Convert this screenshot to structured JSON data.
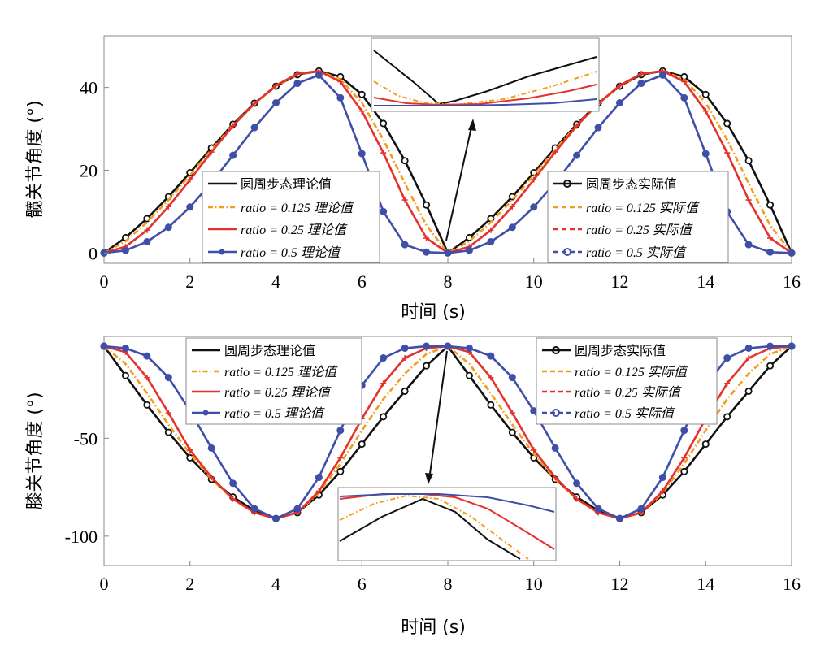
{
  "chart_data": [
    {
      "type": "line",
      "xlabel": "时间 (s)",
      "ylabel": "髋关节角度 (°)",
      "xlim": [
        0,
        16
      ],
      "ylim": [
        -2.5,
        52.5
      ],
      "xticks": [
        0,
        2,
        4,
        6,
        8,
        10,
        12,
        14,
        16
      ],
      "yticks": [
        0,
        20,
        40
      ],
      "grid": false,
      "legend_left": [
        "圆周步态理论值",
        "ratio = 0.125 理论值",
        "ratio = 0.25 理论值",
        "ratio = 0.5 理论值"
      ],
      "legend_right": [
        "圆周步态实际值",
        "ratio = 0.125 实际值",
        "ratio = 0.25 实际值",
        "ratio = 0.5 实际值"
      ],
      "x": [
        0,
        0.5,
        1,
        1.5,
        2,
        2.5,
        3,
        3.5,
        4,
        4.5,
        5,
        5.5,
        6,
        6.5,
        7,
        7.5,
        8,
        8.5,
        9,
        9.5,
        10,
        10.5,
        11,
        11.5,
        12,
        12.5,
        13,
        13.5,
        14,
        14.5,
        15,
        15.5,
        16
      ],
      "series": [
        {
          "name": "圆周步态理论值",
          "color": "#111111",
          "style": "solid",
          "values": [
            0,
            3.7,
            8.3,
            13.6,
            19.4,
            25.4,
            31.1,
            36.2,
            40.3,
            43.1,
            44.0,
            42.6,
            38.3,
            31.3,
            22.3,
            11.6,
            0,
            3.7,
            8.3,
            13.6,
            19.4,
            25.4,
            31.1,
            36.2,
            40.3,
            43.1,
            44.0,
            42.6,
            38.3,
            31.3,
            22.3,
            11.6,
            0
          ]
        },
        {
          "name": "ratio = 0.125 理论值",
          "color": "#F39C1A",
          "style": "dashdot",
          "values": [
            0,
            2.8,
            7.4,
            12.8,
            18.8,
            25.0,
            30.9,
            36.1,
            40.3,
            43.2,
            44.0,
            42.0,
            36.3,
            27.4,
            16.8,
            6.7,
            0,
            2.8,
            7.4,
            12.8,
            18.8,
            25.0,
            30.9,
            36.1,
            40.3,
            43.2,
            44.0,
            42.0,
            36.3,
            27.4,
            16.8,
            6.7,
            0
          ]
        },
        {
          "name": "ratio = 0.25 理论值",
          "color": "#E5322D",
          "style": "solid",
          "values": [
            0,
            1.5,
            5.5,
            11.2,
            17.7,
            24.4,
            30.7,
            36.1,
            40.5,
            43.3,
            44.0,
            41.4,
            34.3,
            24.2,
            12.8,
            3.6,
            0,
            1.5,
            5.5,
            11.2,
            17.7,
            24.4,
            30.7,
            36.1,
            40.5,
            43.3,
            44.0,
            41.4,
            34.3,
            24.2,
            12.8,
            3.6,
            0
          ]
        },
        {
          "name": "ratio = 0.5 理论值",
          "color": "#3F4FA8",
          "style": "solid",
          "values": [
            0,
            0.6,
            2.7,
            6.2,
            11.1,
            17.0,
            23.6,
            30.3,
            36.3,
            41.0,
            43.0,
            37.5,
            24.0,
            10.0,
            2.0,
            0.2,
            0,
            0.6,
            2.7,
            6.2,
            11.1,
            17.0,
            23.6,
            30.3,
            36.3,
            41.0,
            43.0,
            37.5,
            24.0,
            10.0,
            2.0,
            0.2,
            0
          ]
        }
      ]
    },
    {
      "type": "line",
      "xlabel": "时间 (s)",
      "ylabel": "膝关节角度 (°)",
      "xlim": [
        0,
        16
      ],
      "ylim": [
        -115,
        2
      ],
      "xticks": [
        0,
        2,
        4,
        6,
        8,
        10,
        12,
        14,
        16
      ],
      "yticks": [
        -50,
        -100
      ],
      "grid": false,
      "legend_left": [
        "圆周步态理论值",
        "ratio = 0.125 理论值",
        "ratio = 0.25 理论值",
        "ratio = 0.5 理论值"
      ],
      "legend_right": [
        "圆周步态实际值",
        "ratio = 0.125 实际值",
        "ratio = 0.25 实际值",
        "ratio = 0.5 实际值"
      ],
      "x": [
        0,
        0.5,
        1,
        1.5,
        2,
        2.5,
        3,
        3.5,
        4,
        4.5,
        5,
        5.5,
        6,
        6.5,
        7,
        7.5,
        8,
        8.5,
        9,
        9.5,
        10,
        10.5,
        11,
        11.5,
        12,
        12.5,
        13,
        13.5,
        14,
        14.5,
        15,
        15.5,
        16
      ],
      "series": [
        {
          "name": "圆周步态理论值",
          "color": "#111111",
          "style": "solid",
          "values": [
            -3,
            -18,
            -33,
            -47,
            -60,
            -71,
            -80,
            -87,
            -91,
            -88,
            -79,
            -67,
            -53,
            -39,
            -26,
            -13,
            -3,
            -18,
            -33,
            -47,
            -60,
            -71,
            -80,
            -87,
            -91,
            -88,
            -79,
            -67,
            -53,
            -39,
            -26,
            -13,
            -3
          ]
        },
        {
          "name": "ratio = 0.125 理论值",
          "color": "#F39C1A",
          "style": "dashdot",
          "values": [
            -3,
            -12,
            -27,
            -43,
            -58,
            -71,
            -81,
            -88,
            -91,
            -88,
            -78,
            -63,
            -46,
            -30,
            -17,
            -7,
            -3,
            -12,
            -27,
            -43,
            -58,
            -71,
            -81,
            -88,
            -91,
            -88,
            -78,
            -63,
            -46,
            -30,
            -17,
            -7,
            -3
          ]
        },
        {
          "name": "ratio = 0.25 理论值",
          "color": "#E5322D",
          "style": "solid",
          "values": [
            -3,
            -6,
            -19,
            -37,
            -56,
            -70,
            -81,
            -88,
            -91,
            -88,
            -77,
            -60,
            -40,
            -22,
            -9,
            -4,
            -3,
            -6,
            -19,
            -37,
            -56,
            -70,
            -81,
            -88,
            -91,
            -88,
            -77,
            -60,
            -40,
            -22,
            -9,
            -4,
            -3
          ]
        },
        {
          "name": "ratio = 0.5 理论值",
          "color": "#3F4FA8",
          "style": "solid",
          "values": [
            -3,
            -4,
            -8,
            -19,
            -36,
            -55,
            -73,
            -86,
            -91,
            -86,
            -70,
            -46,
            -23,
            -9,
            -4,
            -3,
            -3,
            -4,
            -8,
            -19,
            -36,
            -55,
            -73,
            -86,
            -91,
            -86,
            -70,
            -46,
            -23,
            -9,
            -4,
            -3,
            -3
          ]
        }
      ]
    }
  ]
}
